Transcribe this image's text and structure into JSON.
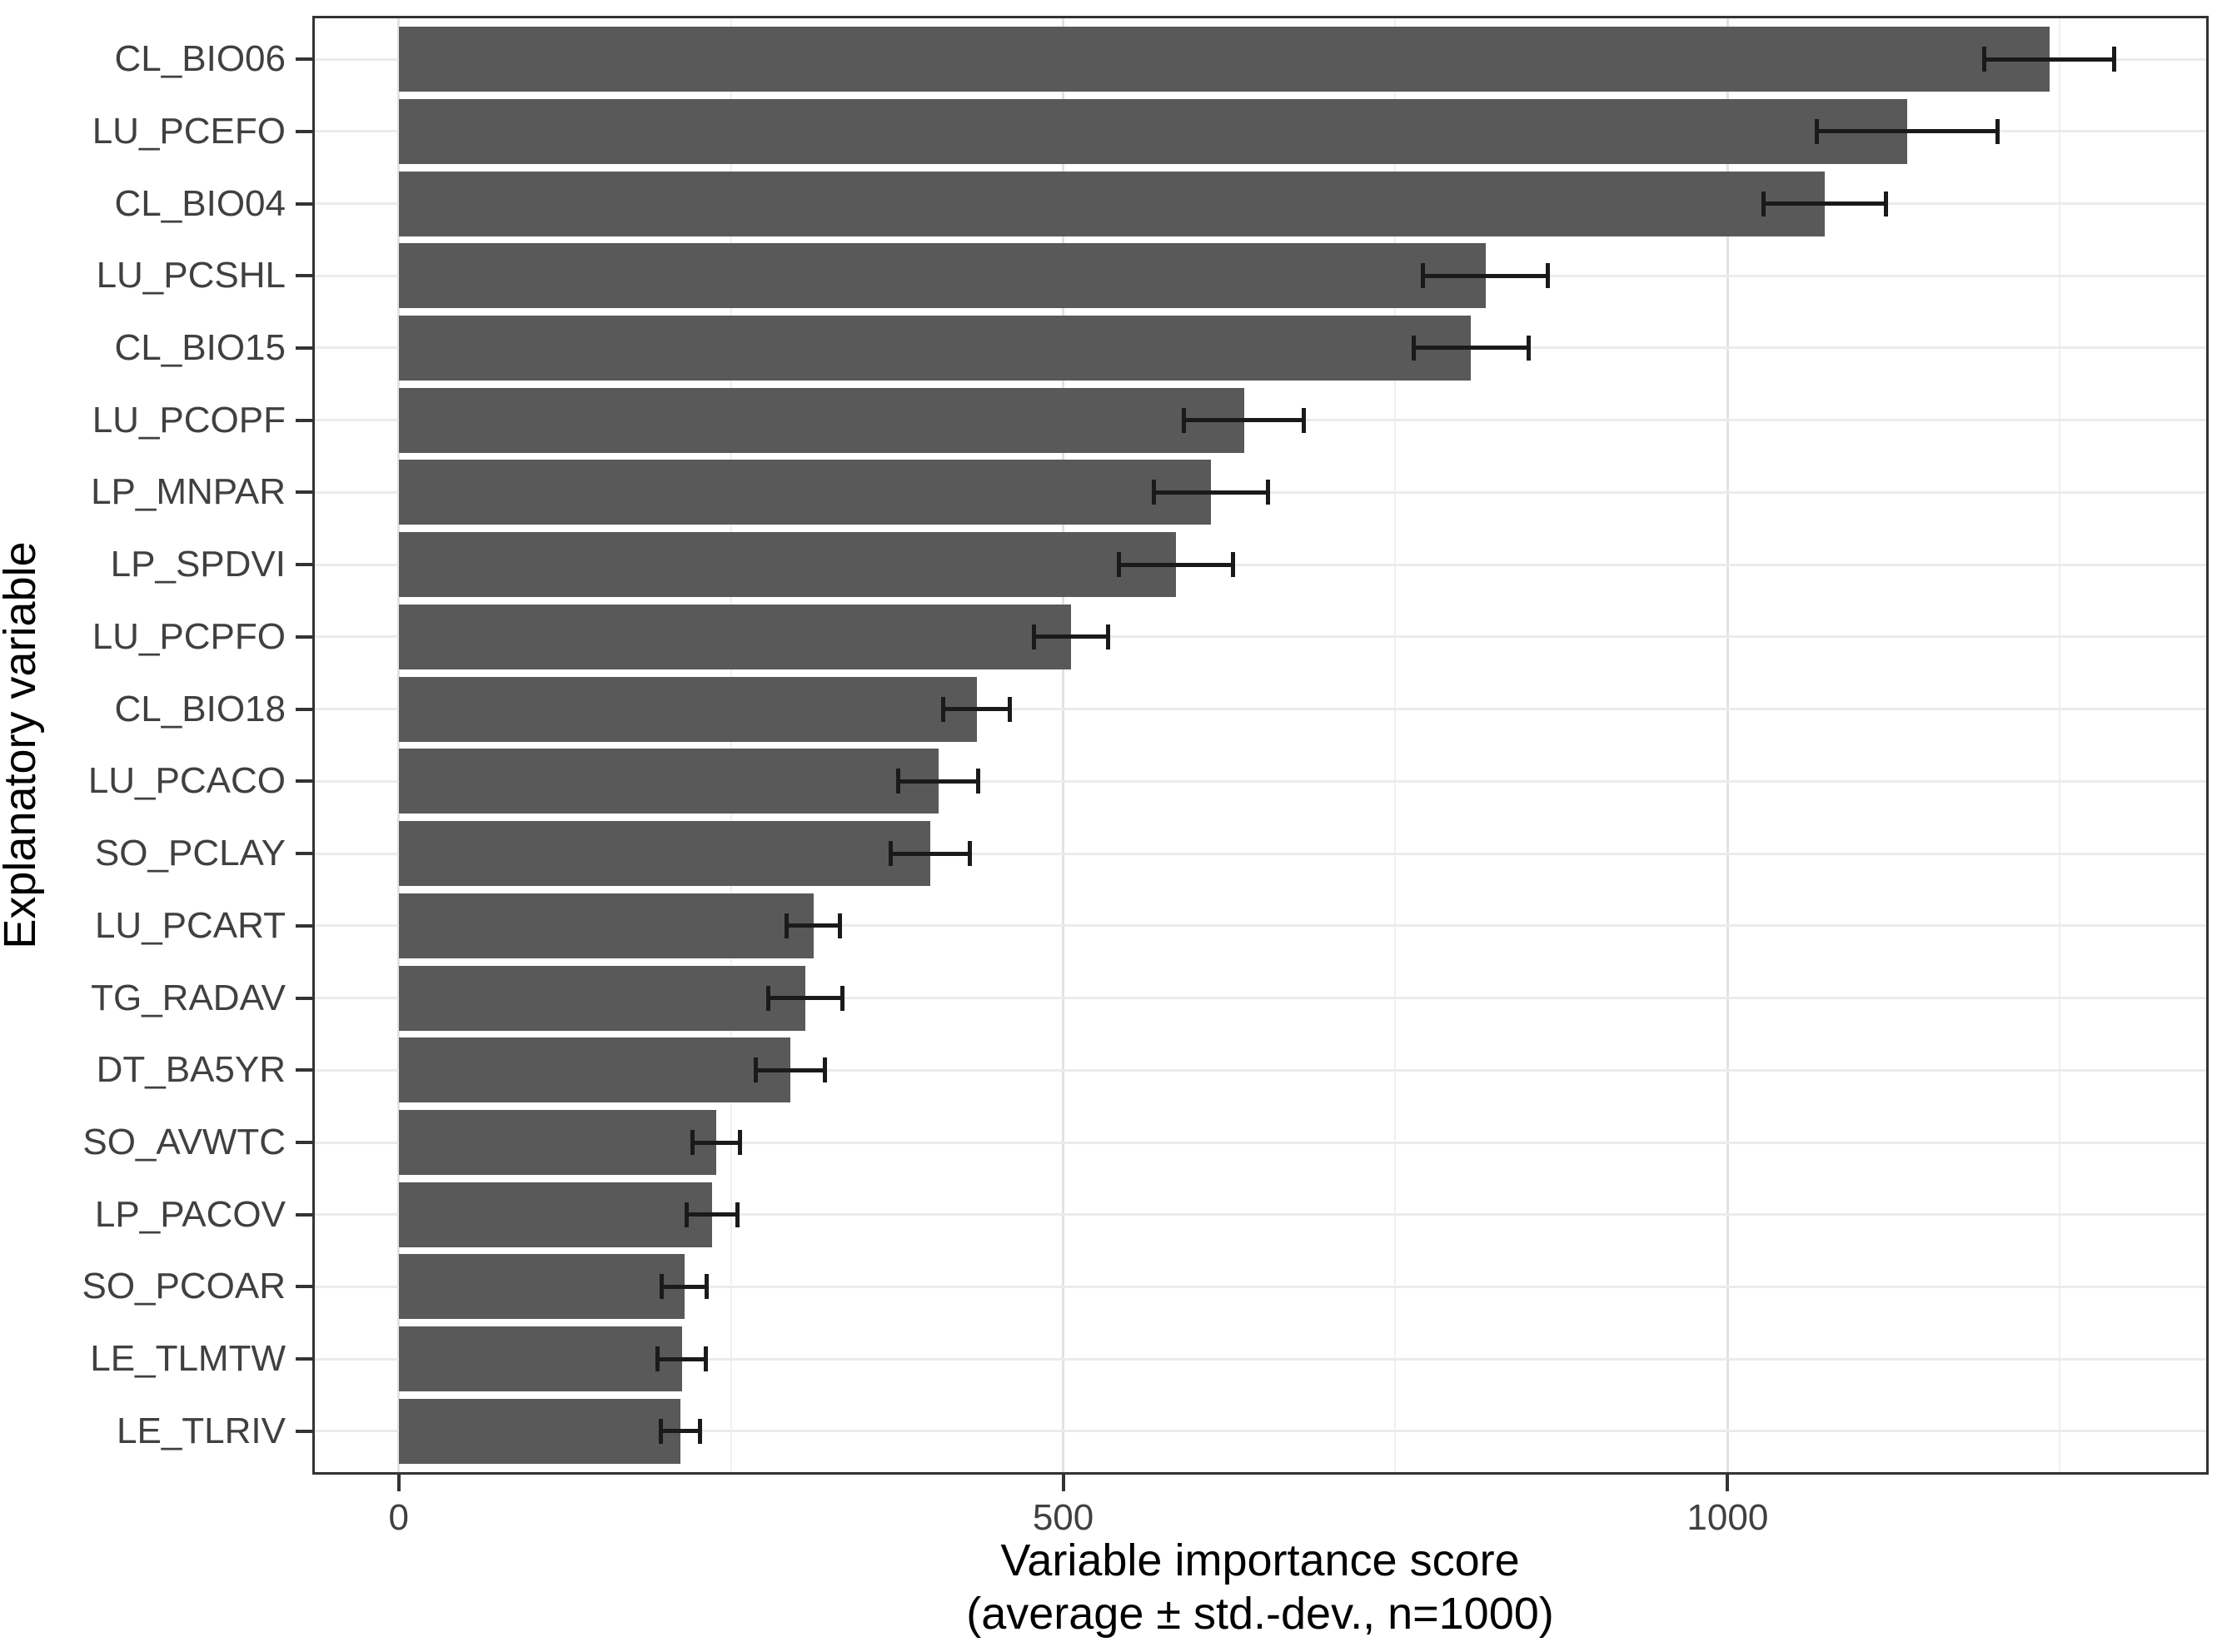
{
  "chart_data": {
    "type": "bar",
    "orientation": "horizontal",
    "xlabel_line1": "Variable importance score",
    "xlabel_line2": "(average ± std.-dev., n=1000)",
    "ylabel": "Explanatory variable",
    "x_ticks": [
      0,
      500,
      1000
    ],
    "x_minor_gridlines": [
      250,
      750,
      1250
    ],
    "xlim": [
      -65,
      1362
    ],
    "grid": true,
    "legend": "none",
    "bar_color": "#595959",
    "error_color": "#1a1a1a",
    "categories": [
      "CL_BIO06",
      "LU_PCEFO",
      "CL_BIO04",
      "LU_PCSHL",
      "CL_BIO15",
      "LU_PCOPF",
      "LP_MNPAR",
      "LP_SPDVI",
      "LU_PCPFO",
      "CL_BIO18",
      "LU_PCACO",
      "SO_PCLAY",
      "LU_PCART",
      "TG_RADAV",
      "DT_BA5YR",
      "SO_AVWTC",
      "LP_PACOV",
      "SO_PCOAR",
      "LE_TLMTW",
      "LE_TLRIV"
    ],
    "series": [
      {
        "name": "importance_mean",
        "values": [
          1242,
          1135,
          1073,
          818,
          807,
          636,
          611,
          585,
          506,
          435,
          406,
          400,
          312,
          306,
          295,
          239,
          236,
          215,
          213,
          212
        ]
      },
      {
        "name": "importance_sd",
        "values": [
          49,
          68,
          46,
          47,
          43,
          45,
          43,
          43,
          28,
          25,
          30,
          30,
          20,
          28,
          26,
          18,
          19,
          17,
          18,
          15
        ]
      }
    ]
  }
}
